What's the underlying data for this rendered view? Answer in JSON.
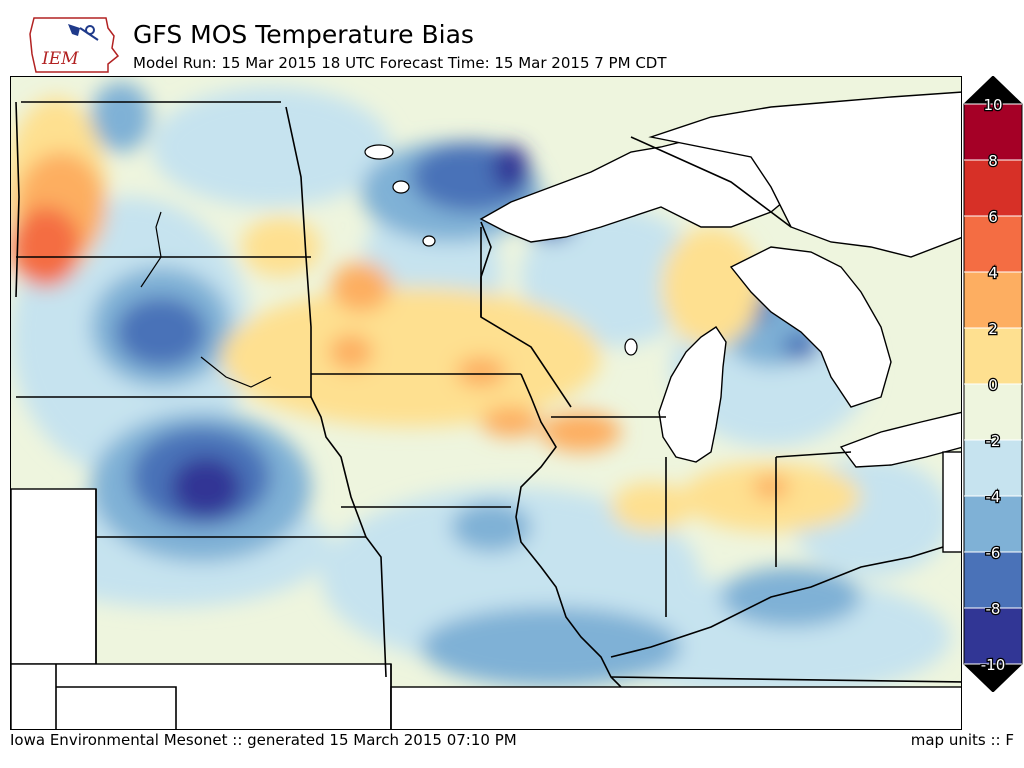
{
  "header": {
    "logo_text": "IEM",
    "title": "GFS MOS Temperature Bias",
    "subtitle": "Model Run: 15 Mar 2015 18 UTC Forecast Time: 15 Mar 2015 7 PM CDT"
  },
  "colorbar": {
    "ticks": [
      "10",
      "8",
      "6",
      "4",
      "2",
      "0",
      "-2",
      "-4",
      "-6",
      "-8",
      "-10"
    ],
    "bins": [
      {
        "range": "8 to 10",
        "color": "#a50026"
      },
      {
        "range": "6 to 8",
        "color": "#d73027"
      },
      {
        "range": "4 to 6",
        "color": "#f46d43"
      },
      {
        "range": "2 to 4",
        "color": "#fdae61"
      },
      {
        "range": "0 to 2",
        "color": "#fee090"
      },
      {
        "range": "-2 to 0",
        "color": "#eef5de"
      },
      {
        "range": "-4 to -2",
        "color": "#c6e3ef"
      },
      {
        "range": "-6 to -4",
        "color": "#7fb1d6"
      },
      {
        "range": "-8 to -6",
        "color": "#4a72b8"
      },
      {
        "range": "-10 to -8",
        "color": "#313695"
      }
    ],
    "over_color": "#000000",
    "under_color": "#000000"
  },
  "footer": {
    "left": "Iowa Environmental Mesonet :: generated 15 March 2015 07:10 PM",
    "right": "map units :: F"
  }
}
